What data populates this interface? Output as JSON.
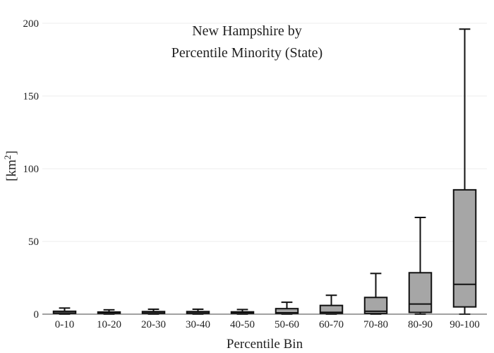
{
  "chart_data": {
    "type": "box",
    "title_lines": [
      "New Hampshire  by",
      "Percentile Minority (State)"
    ],
    "xlabel": "Percentile Bin",
    "ylabel_base": "[km",
    "ylabel_sup": "2",
    "ylabel_close": "]",
    "ylim": [
      0,
      200
    ],
    "yticks": [
      "0",
      "50",
      "100",
      "150",
      "200"
    ],
    "grid": true,
    "box_color": "#a6a6a6",
    "categories": [
      "0-10",
      "10-20",
      "20-30",
      "30-40",
      "40-50",
      "50-60",
      "60-70",
      "70-80",
      "80-90",
      "90-100"
    ],
    "boxes": [
      {
        "min": 0,
        "q1": 0.3,
        "median": 0.8,
        "q3": 2.0,
        "max": 4.2
      },
      {
        "min": 0,
        "q1": 0.3,
        "median": 0.7,
        "q3": 1.5,
        "max": 3.0
      },
      {
        "min": 0,
        "q1": 0.3,
        "median": 0.8,
        "q3": 1.8,
        "max": 3.4
      },
      {
        "min": 0,
        "q1": 0.3,
        "median": 0.8,
        "q3": 1.8,
        "max": 3.4
      },
      {
        "min": 0,
        "q1": 0.3,
        "median": 0.8,
        "q3": 1.6,
        "max": 3.2
      },
      {
        "min": 0,
        "q1": 0.3,
        "median": 1.0,
        "q3": 3.8,
        "max": 8.2
      },
      {
        "min": 0,
        "q1": 0.4,
        "median": 1.3,
        "q3": 6.0,
        "max": 13.0
      },
      {
        "min": 0,
        "q1": 0.5,
        "median": 2.0,
        "q3": 11.5,
        "max": 28.0
      },
      {
        "min": 0,
        "q1": 1.2,
        "median": 7.0,
        "q3": 28.5,
        "max": 66.5
      },
      {
        "min": 0,
        "q1": 5.0,
        "median": 20.5,
        "q3": 85.5,
        "max": 196.0
      }
    ]
  }
}
